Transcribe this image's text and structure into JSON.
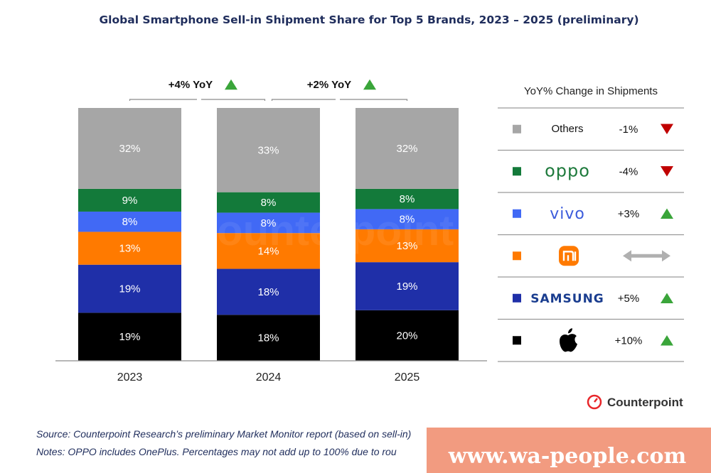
{
  "chart_data": {
    "type": "bar",
    "stacked": true,
    "title": "Global Smartphone Sell-in Shipment Share for Top 5 Brands, 2023 – 2025 (preliminary)",
    "categories": [
      "2023",
      "2024",
      "2025"
    ],
    "series": [
      {
        "name": "Apple",
        "color": "#000000",
        "values": [
          19,
          18,
          20
        ],
        "labels": [
          "19%",
          "18%",
          "20%"
        ],
        "yoy": "+10%",
        "trend": "up"
      },
      {
        "name": "SAMSUNG",
        "color": "#1f2fa8",
        "values": [
          19,
          18,
          19
        ],
        "labels": [
          "19%",
          "18%",
          "19%"
        ],
        "yoy": "+5%",
        "trend": "up"
      },
      {
        "name": "Xiaomi",
        "color": "#ff7a00",
        "values": [
          13,
          14,
          13
        ],
        "labels": [
          "13%",
          "14%",
          "13%"
        ],
        "yoy": "",
        "trend": "flat"
      },
      {
        "name": "vivo",
        "color": "#4169f5",
        "values": [
          8,
          8,
          8
        ],
        "labels": [
          "8%",
          "8%",
          "8%"
        ],
        "yoy": "+3%",
        "trend": "up"
      },
      {
        "name": "oppo",
        "color": "#137a3a",
        "values": [
          9,
          8,
          8
        ],
        "labels": [
          "9%",
          "8%",
          "8%"
        ],
        "yoy": "-4%",
        "trend": "down"
      },
      {
        "name": "Others",
        "color": "#a6a6a6",
        "values": [
          32,
          33,
          32
        ],
        "labels": [
          "32%",
          "33%",
          "32%"
        ],
        "yoy": "-1%",
        "trend": "down"
      }
    ],
    "annotations": [
      {
        "from": "2023",
        "to": "2024",
        "text": "+4% YoY",
        "trend": "up"
      },
      {
        "from": "2024",
        "to": "2025",
        "text": "+2% YoY",
        "trend": "up"
      }
    ],
    "legend_title": "YoY% Change in Shipments",
    "legend": "right",
    "grid": false
  },
  "trend_colors": {
    "up": "#3aa53a",
    "down": "#c00000",
    "flat": "#b0b0b0"
  },
  "footer": {
    "source": "Source: Counterpoint Research’s preliminary Market Monitor report (based on sell-in)",
    "notes": "Notes: OPPO includes OnePlus. Percentages may not add up to 100% due to rou",
    "logo_text": "Counterpoint",
    "logo_color": "#e8262a"
  },
  "watermark": {
    "text": "www.wa-people.com",
    "bg_color": "#f08a6a"
  },
  "ghost_watermark": "Counterpoint"
}
